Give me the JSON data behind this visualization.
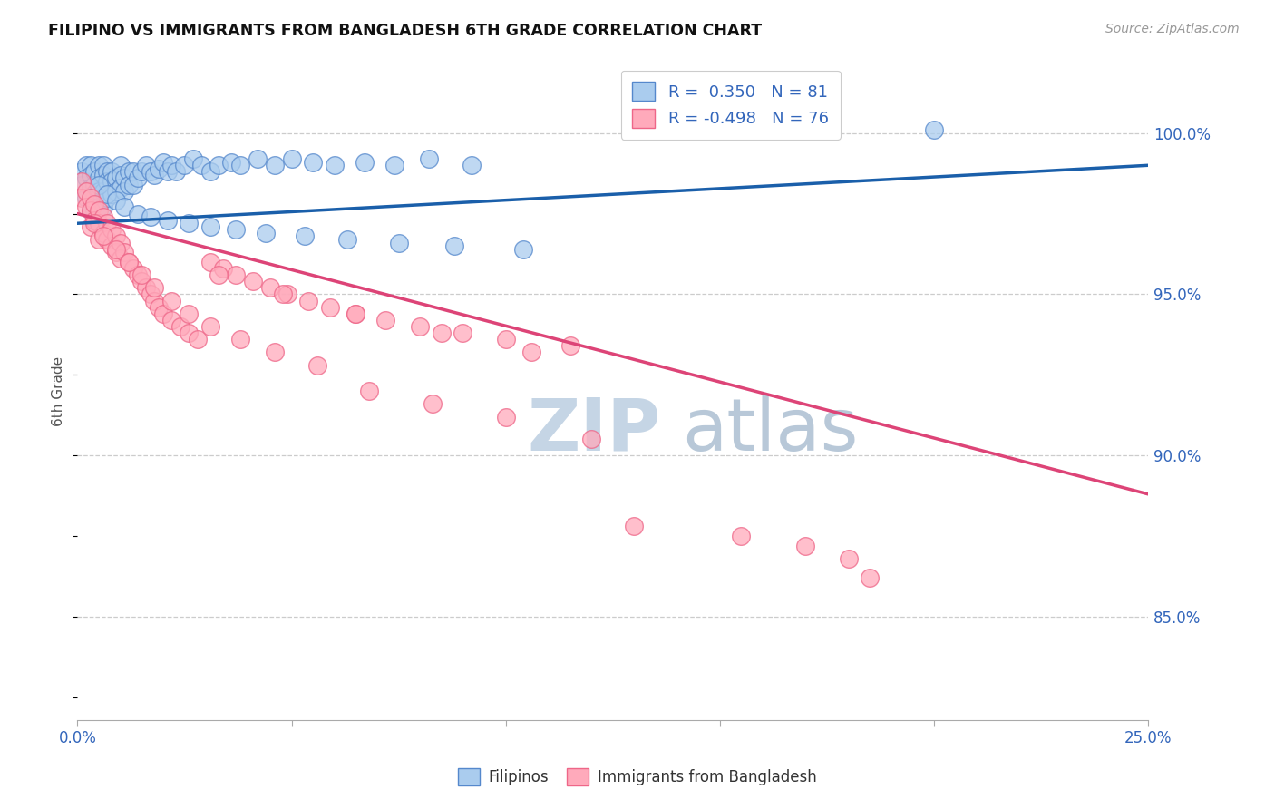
{
  "title": "FILIPINO VS IMMIGRANTS FROM BANGLADESH 6TH GRADE CORRELATION CHART",
  "source": "Source: ZipAtlas.com",
  "ylabel": "6th Grade",
  "ytick_values": [
    0.85,
    0.9,
    0.95,
    1.0
  ],
  "xmin": 0.0,
  "xmax": 0.25,
  "ymin": 0.818,
  "ymax": 1.022,
  "legend_filipino": "Filipinos",
  "legend_bangladesh": "Immigrants from Bangladesh",
  "r_filipino": 0.35,
  "n_filipino": 81,
  "r_bangladesh": -0.498,
  "n_bangladesh": 76,
  "color_blue_fill": "#aaccee",
  "color_blue_edge": "#5588cc",
  "color_pink_fill": "#ffaabb",
  "color_pink_edge": "#ee6688",
  "color_blue_line": "#1a5faa",
  "color_pink_line": "#dd4477",
  "color_blue_text": "#3366bb",
  "watermark_zip": "#c5d5e5",
  "watermark_atlas": "#b8c8d8",
  "filipino_x": [
    0.001,
    0.001,
    0.002,
    0.002,
    0.002,
    0.003,
    0.003,
    0.003,
    0.003,
    0.004,
    0.004,
    0.004,
    0.004,
    0.005,
    0.005,
    0.005,
    0.005,
    0.006,
    0.006,
    0.006,
    0.006,
    0.007,
    0.007,
    0.007,
    0.008,
    0.008,
    0.008,
    0.009,
    0.009,
    0.01,
    0.01,
    0.01,
    0.011,
    0.011,
    0.012,
    0.012,
    0.013,
    0.013,
    0.014,
    0.015,
    0.016,
    0.017,
    0.018,
    0.019,
    0.02,
    0.021,
    0.022,
    0.023,
    0.025,
    0.027,
    0.029,
    0.031,
    0.033,
    0.036,
    0.038,
    0.042,
    0.046,
    0.05,
    0.055,
    0.06,
    0.067,
    0.074,
    0.082,
    0.092,
    0.005,
    0.007,
    0.009,
    0.011,
    0.014,
    0.017,
    0.021,
    0.026,
    0.031,
    0.037,
    0.044,
    0.053,
    0.063,
    0.075,
    0.088,
    0.104,
    0.2
  ],
  "filipino_y": [
    0.988,
    0.984,
    0.99,
    0.986,
    0.98,
    0.99,
    0.987,
    0.983,
    0.976,
    0.988,
    0.984,
    0.98,
    0.976,
    0.99,
    0.986,
    0.982,
    0.977,
    0.99,
    0.987,
    0.982,
    0.977,
    0.988,
    0.985,
    0.98,
    0.988,
    0.985,
    0.981,
    0.986,
    0.982,
    0.99,
    0.987,
    0.983,
    0.986,
    0.982,
    0.988,
    0.984,
    0.988,
    0.984,
    0.986,
    0.988,
    0.99,
    0.988,
    0.987,
    0.989,
    0.991,
    0.988,
    0.99,
    0.988,
    0.99,
    0.992,
    0.99,
    0.988,
    0.99,
    0.991,
    0.99,
    0.992,
    0.99,
    0.992,
    0.991,
    0.99,
    0.991,
    0.99,
    0.992,
    0.99,
    0.984,
    0.981,
    0.979,
    0.977,
    0.975,
    0.974,
    0.973,
    0.972,
    0.971,
    0.97,
    0.969,
    0.968,
    0.967,
    0.966,
    0.965,
    0.964,
    1.001
  ],
  "bangladesh_x": [
    0.001,
    0.001,
    0.002,
    0.002,
    0.003,
    0.003,
    0.003,
    0.004,
    0.004,
    0.005,
    0.005,
    0.005,
    0.006,
    0.006,
    0.007,
    0.007,
    0.008,
    0.008,
    0.009,
    0.009,
    0.01,
    0.01,
    0.011,
    0.012,
    0.013,
    0.014,
    0.015,
    0.016,
    0.017,
    0.018,
    0.019,
    0.02,
    0.022,
    0.024,
    0.026,
    0.028,
    0.031,
    0.034,
    0.037,
    0.041,
    0.045,
    0.049,
    0.054,
    0.059,
    0.065,
    0.072,
    0.08,
    0.09,
    0.1,
    0.115,
    0.004,
    0.006,
    0.009,
    0.012,
    0.015,
    0.018,
    0.022,
    0.026,
    0.031,
    0.038,
    0.046,
    0.056,
    0.068,
    0.083,
    0.1,
    0.12,
    0.033,
    0.048,
    0.065,
    0.085,
    0.106,
    0.13,
    0.155,
    0.17,
    0.18,
    0.185
  ],
  "bangladesh_y": [
    0.985,
    0.98,
    0.982,
    0.977,
    0.98,
    0.976,
    0.971,
    0.978,
    0.973,
    0.976,
    0.972,
    0.967,
    0.974,
    0.969,
    0.972,
    0.967,
    0.97,
    0.965,
    0.968,
    0.963,
    0.966,
    0.961,
    0.963,
    0.96,
    0.958,
    0.956,
    0.954,
    0.952,
    0.95,
    0.948,
    0.946,
    0.944,
    0.942,
    0.94,
    0.938,
    0.936,
    0.96,
    0.958,
    0.956,
    0.954,
    0.952,
    0.95,
    0.948,
    0.946,
    0.944,
    0.942,
    0.94,
    0.938,
    0.936,
    0.934,
    0.972,
    0.968,
    0.964,
    0.96,
    0.956,
    0.952,
    0.948,
    0.944,
    0.94,
    0.936,
    0.932,
    0.928,
    0.92,
    0.916,
    0.912,
    0.905,
    0.956,
    0.95,
    0.944,
    0.938,
    0.932,
    0.878,
    0.875,
    0.872,
    0.868,
    0.862
  ],
  "blue_line_x0": 0.0,
  "blue_line_y0": 0.972,
  "blue_line_x1": 0.25,
  "blue_line_y1": 0.99,
  "pink_line_x0": 0.0,
  "pink_line_y0": 0.975,
  "pink_line_x1": 0.25,
  "pink_line_y1": 0.888
}
